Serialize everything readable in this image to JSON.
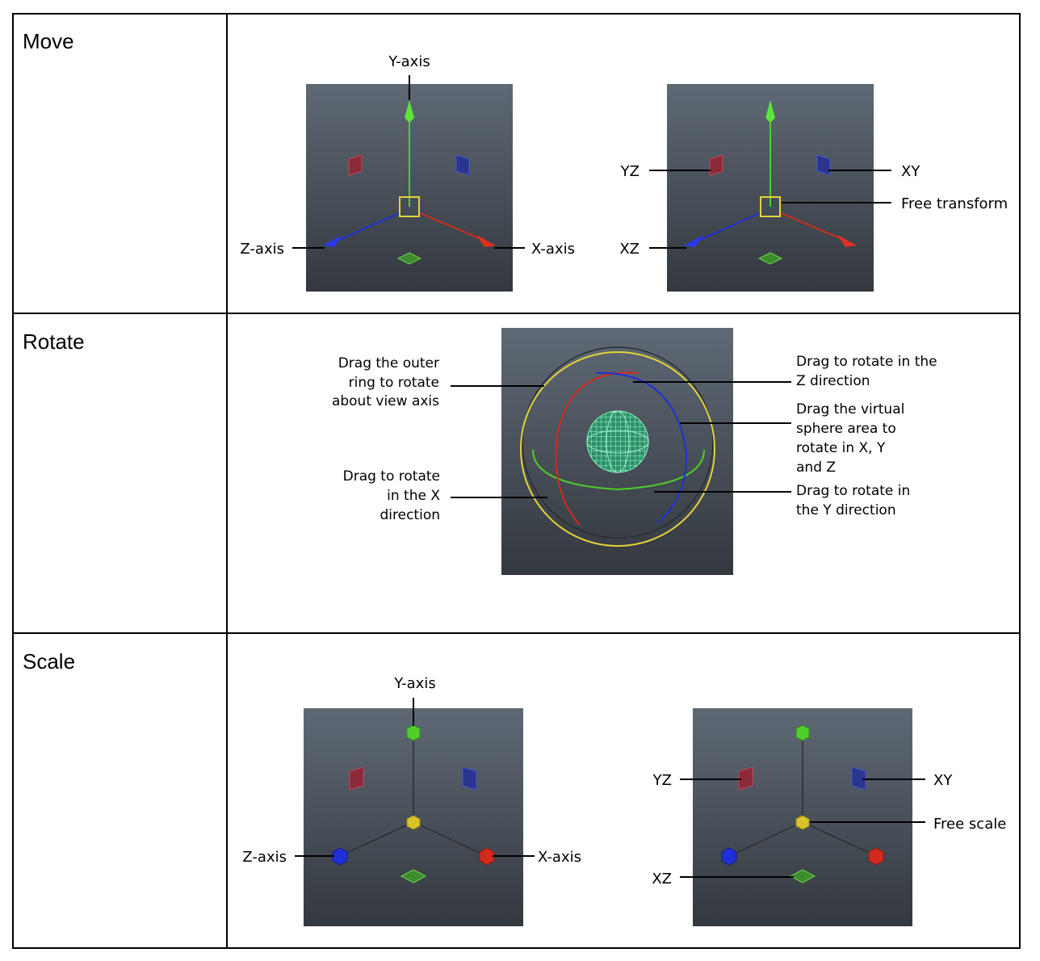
{
  "rows": {
    "move": {
      "label": "Move",
      "left_gizmo": {
        "y_axis": "Y-axis",
        "z_axis": "Z-axis",
        "x_axis": "X-axis"
      },
      "right_gizmo": {
        "yz": "YZ",
        "xy": "XY",
        "free": "Free transform",
        "xz": "XZ"
      }
    },
    "rotate": {
      "label": "Rotate",
      "outer_ring": [
        "Drag the outer",
        "ring to rotate",
        "about view axis"
      ],
      "x_dir": [
        "Drag to rotate",
        "in the X",
        "direction"
      ],
      "z_dir": [
        "Drag to rotate in the",
        "Z direction"
      ],
      "sphere": [
        "Drag the virtual",
        "sphere area to",
        "rotate in X, Y",
        "and Z"
      ],
      "y_dir": [
        "Drag to rotate in",
        "the Y direction"
      ]
    },
    "scale": {
      "label": "Scale",
      "left_gizmo": {
        "y_axis": "Y-axis",
        "z_axis": "Z-axis",
        "x_axis": "X-axis"
      },
      "right_gizmo": {
        "yz": "YZ",
        "xy": "XY",
        "free": "Free scale",
        "xz": "XZ"
      }
    }
  },
  "colors": {
    "x": "#d22a1e",
    "y": "#4fcf2a",
    "z": "#1f2fd8",
    "free": "#e5d23a",
    "panel_top": "#5f6975",
    "panel_bottom": "#34393f"
  }
}
